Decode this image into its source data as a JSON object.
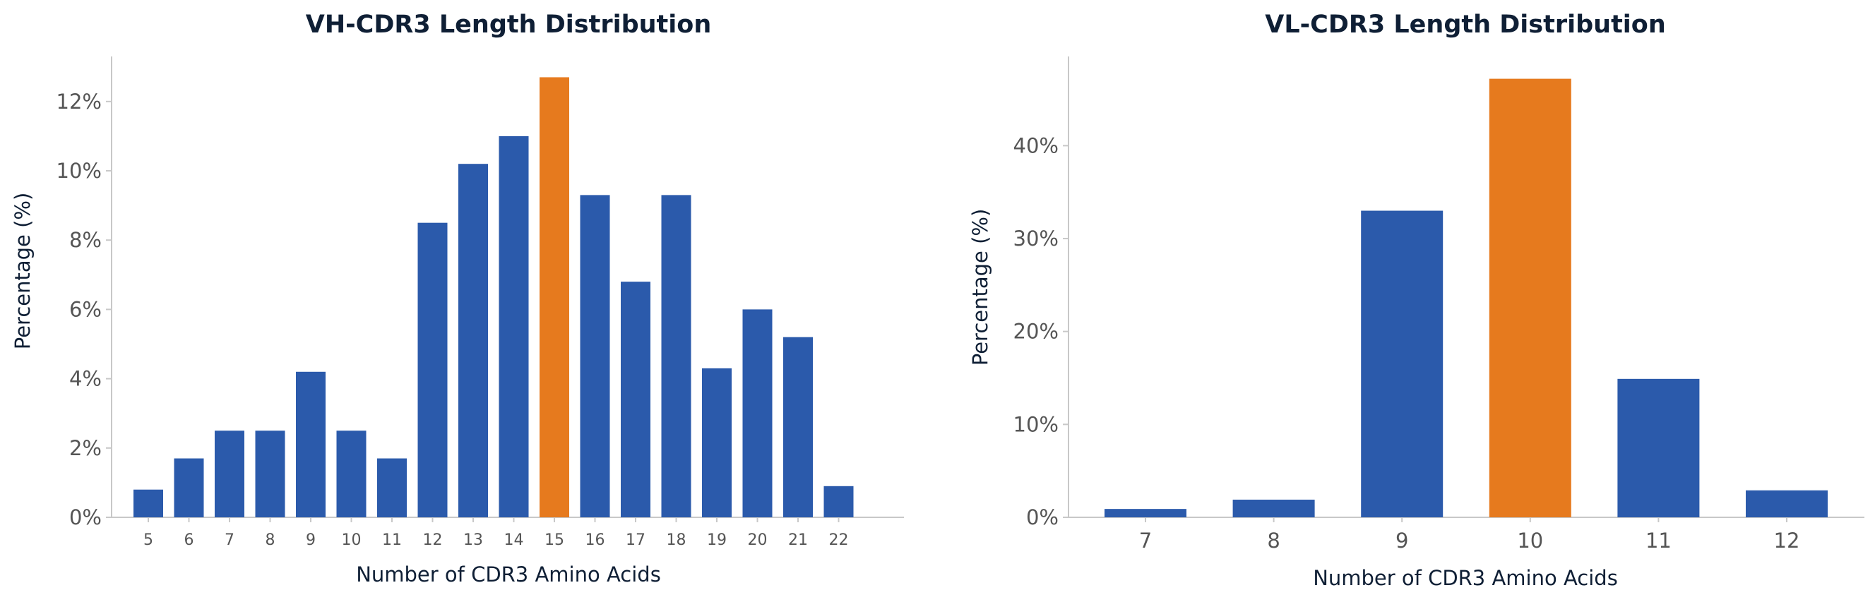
{
  "chart_data": [
    {
      "type": "bar",
      "title": "VH-CDR3 Length Distribution",
      "xlabel": "Number of CDR3 Amino Acids",
      "ylabel": "Percentage (%)",
      "categories": [
        "5",
        "6",
        "7",
        "8",
        "9",
        "10",
        "11",
        "12",
        "13",
        "14",
        "15",
        "16",
        "17",
        "18",
        "19",
        "20",
        "21",
        "22"
      ],
      "values": [
        0.8,
        1.7,
        2.5,
        2.5,
        4.2,
        2.5,
        1.7,
        8.5,
        10.2,
        11.0,
        12.7,
        9.3,
        6.8,
        9.3,
        4.3,
        6.0,
        5.2,
        0.9
      ],
      "ylim": [
        0,
        13.3
      ],
      "yticks": [
        0,
        2,
        4,
        6,
        8,
        10,
        12
      ],
      "ytick_labels": [
        "0%",
        "2%",
        "4%",
        "6%",
        "8%",
        "10%",
        "12%"
      ],
      "highlight_category": "15",
      "bar_color": "#2b5aab",
      "highlight_color": "#e67a1e",
      "grid": false
    },
    {
      "type": "bar",
      "title": "VL-CDR3 Length Distribution",
      "xlabel": "Number of CDR3 Amino Acids",
      "ylabel": "Percentage (%)",
      "categories": [
        "7",
        "8",
        "9",
        "10",
        "11",
        "12"
      ],
      "values": [
        0.9,
        1.9,
        33.0,
        47.2,
        14.9,
        2.9
      ],
      "ylim": [
        0,
        49.6
      ],
      "yticks": [
        0,
        10,
        20,
        30,
        40
      ],
      "ytick_labels": [
        "0%",
        "10%",
        "20%",
        "30%",
        "40%"
      ],
      "highlight_category": "10",
      "bar_color": "#2b5aab",
      "highlight_color": "#e67a1e",
      "grid": false
    }
  ]
}
